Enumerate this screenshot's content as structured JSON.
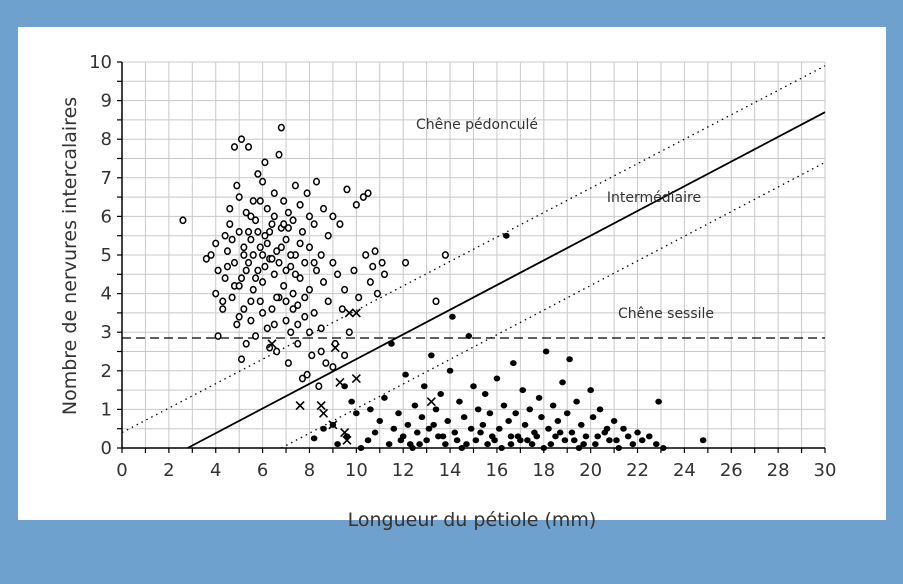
{
  "chart_data": {
    "type": "scatter",
    "xlabel": "Longueur du pétiole (mm)",
    "ylabel": "Nombre de nervures intercalaires",
    "xlim": [
      0,
      30
    ],
    "ylim": [
      0,
      10
    ],
    "xticks": [
      "0",
      "2",
      "4",
      "6",
      "8",
      "10",
      "12",
      "14",
      "16",
      "18",
      "20",
      "22",
      "24",
      "26",
      "28",
      "30"
    ],
    "yticks": [
      "0",
      "1",
      "2",
      "3",
      "4",
      "5",
      "6",
      "7",
      "8",
      "9",
      "10"
    ],
    "grid": true,
    "annotations": {
      "pedoncule": "Chêne pédonculé",
      "intermediaire": "Intermédiaire",
      "sessile": "Chêne sessile"
    },
    "lines": {
      "separator": {
        "x": [
          2.8,
          30
        ],
        "y": [
          0,
          8.7
        ]
      },
      "upper_bound": {
        "x": [
          0,
          30
        ],
        "y": [
          0.4,
          9.9
        ]
      },
      "lower_bound": {
        "x": [
          6.8,
          30
        ],
        "y": [
          0,
          7.4
        ]
      },
      "horizontal_threshold": 2.85
    },
    "series": [
      {
        "marker": "open-circle",
        "points": [
          [
            2.6,
            5.9
          ],
          [
            3.6,
            4.9
          ],
          [
            3.8,
            5.0
          ],
          [
            4.0,
            5.3
          ],
          [
            4.0,
            4.0
          ],
          [
            4.1,
            4.6
          ],
          [
            4.1,
            2.9
          ],
          [
            4.3,
            3.8
          ],
          [
            4.3,
            3.6
          ],
          [
            4.4,
            5.5
          ],
          [
            4.4,
            4.4
          ],
          [
            4.5,
            5.1
          ],
          [
            4.5,
            4.7
          ],
          [
            4.6,
            6.2
          ],
          [
            4.6,
            5.8
          ],
          [
            4.7,
            3.9
          ],
          [
            4.8,
            4.2
          ],
          [
            4.8,
            7.8
          ],
          [
            4.9,
            3.2
          ],
          [
            4.9,
            6.8
          ],
          [
            5.0,
            6.5
          ],
          [
            5.0,
            5.6
          ],
          [
            5.1,
            8.0
          ],
          [
            5.1,
            2.3
          ],
          [
            5.1,
            4.4
          ],
          [
            5.2,
            5.0
          ],
          [
            5.2,
            3.6
          ],
          [
            5.3,
            6.1
          ],
          [
            5.3,
            2.7
          ],
          [
            5.4,
            4.8
          ],
          [
            5.4,
            7.8
          ],
          [
            5.5,
            5.4
          ],
          [
            5.5,
            3.3
          ],
          [
            5.6,
            6.4
          ],
          [
            5.6,
            4.1
          ],
          [
            5.7,
            5.9
          ],
          [
            5.7,
            2.9
          ],
          [
            5.8,
            7.1
          ],
          [
            5.8,
            4.6
          ],
          [
            5.9,
            5.2
          ],
          [
            5.9,
            3.8
          ],
          [
            6.0,
            6.9
          ],
          [
            6.0,
            4.3
          ],
          [
            6.1,
            7.4
          ],
          [
            6.1,
            5.5
          ],
          [
            6.2,
            3.1
          ],
          [
            6.2,
            6.2
          ],
          [
            6.3,
            4.9
          ],
          [
            6.3,
            2.6
          ],
          [
            6.4,
            5.8
          ],
          [
            6.4,
            3.6
          ],
          [
            6.5,
            6.6
          ],
          [
            6.5,
            4.5
          ],
          [
            6.6,
            2.5
          ],
          [
            6.6,
            5.1
          ],
          [
            6.7,
            7.6
          ],
          [
            6.7,
            3.9
          ],
          [
            6.8,
            8.3
          ],
          [
            6.8,
            5.7
          ],
          [
            6.9,
            4.2
          ],
          [
            6.9,
            6.4
          ],
          [
            7.0,
            3.3
          ],
          [
            7.0,
            5.4
          ],
          [
            7.1,
            2.2
          ],
          [
            7.1,
            6.1
          ],
          [
            7.2,
            4.7
          ],
          [
            7.2,
            3.0
          ],
          [
            7.3,
            5.9
          ],
          [
            7.3,
            4.0
          ],
          [
            7.4,
            6.8
          ],
          [
            7.4,
            5.0
          ],
          [
            7.5,
            2.7
          ],
          [
            7.5,
            3.7
          ],
          [
            7.6,
            6.3
          ],
          [
            7.6,
            4.4
          ],
          [
            7.7,
            1.8
          ],
          [
            7.7,
            5.6
          ],
          [
            7.8,
            4.8
          ],
          [
            7.8,
            3.4
          ],
          [
            7.9,
            6.6
          ],
          [
            7.9,
            1.9
          ],
          [
            8.0,
            5.2
          ],
          [
            8.0,
            4.1
          ],
          [
            8.1,
            2.4
          ],
          [
            8.2,
            5.8
          ],
          [
            8.2,
            3.5
          ],
          [
            8.3,
            4.6
          ],
          [
            8.3,
            6.9
          ],
          [
            8.4,
            1.6
          ],
          [
            8.5,
            5.0
          ],
          [
            8.5,
            3.1
          ],
          [
            8.6,
            4.3
          ],
          [
            8.6,
            6.2
          ],
          [
            8.7,
            2.2
          ],
          [
            8.8,
            5.5
          ],
          [
            8.8,
            3.8
          ],
          [
            9.0,
            4.8
          ],
          [
            9.0,
            6.0
          ],
          [
            9.1,
            2.7
          ],
          [
            9.2,
            4.5
          ],
          [
            9.3,
            5.8
          ],
          [
            9.4,
            3.6
          ],
          [
            9.5,
            4.1
          ],
          [
            9.6,
            6.7
          ],
          [
            9.7,
            3.0
          ],
          [
            9.9,
            4.6
          ],
          [
            10.0,
            6.3
          ],
          [
            10.1,
            3.9
          ],
          [
            10.3,
            6.5
          ],
          [
            10.4,
            5.0
          ],
          [
            10.5,
            6.6
          ],
          [
            10.6,
            4.3
          ],
          [
            10.7,
            4.7
          ],
          [
            10.8,
            5.1
          ],
          [
            10.9,
            4.0
          ],
          [
            11.1,
            4.8
          ],
          [
            11.2,
            4.5
          ],
          [
            12.1,
            4.8
          ],
          [
            13.4,
            3.8
          ],
          [
            13.8,
            5.0
          ],
          [
            5.2,
            5.2
          ],
          [
            5.3,
            4.6
          ],
          [
            5.5,
            6.0
          ],
          [
            5.6,
            5.0
          ],
          [
            5.8,
            5.6
          ],
          [
            5.9,
            6.4
          ],
          [
            6.1,
            4.7
          ],
          [
            6.2,
            5.3
          ],
          [
            6.4,
            4.9
          ],
          [
            6.5,
            6.0
          ],
          [
            6.6,
            3.9
          ],
          [
            6.8,
            5.2
          ],
          [
            7.0,
            4.6
          ],
          [
            7.1,
            5.7
          ],
          [
            7.3,
            3.6
          ],
          [
            7.4,
            4.5
          ],
          [
            7.6,
            5.3
          ],
          [
            7.8,
            3.9
          ],
          [
            8.0,
            6.0
          ],
          [
            8.2,
            4.8
          ],
          [
            4.7,
            5.4
          ],
          [
            4.8,
            4.8
          ],
          [
            5.0,
            4.2
          ],
          [
            5.4,
            5.6
          ],
          [
            5.7,
            4.4
          ],
          [
            6.0,
            5.0
          ],
          [
            6.3,
            5.6
          ],
          [
            6.7,
            4.8
          ],
          [
            6.9,
            5.8
          ],
          [
            7.2,
            5.0
          ],
          [
            5.0,
            3.4
          ],
          [
            5.5,
            3.8
          ],
          [
            6.0,
            3.5
          ],
          [
            6.5,
            3.2
          ],
          [
            7.0,
            3.8
          ],
          [
            7.5,
            3.2
          ],
          [
            8.0,
            3.0
          ],
          [
            8.5,
            2.5
          ],
          [
            9.0,
            2.1
          ],
          [
            9.5,
            2.4
          ]
        ]
      },
      {
        "marker": "filled-circle",
        "points": [
          [
            8.2,
            0.25
          ],
          [
            8.6,
            0.5
          ],
          [
            9.0,
            0.6
          ],
          [
            9.2,
            0.1
          ],
          [
            9.5,
            1.6
          ],
          [
            9.6,
            0.3
          ],
          [
            9.8,
            1.2
          ],
          [
            10.0,
            0.9
          ],
          [
            10.2,
            0.0
          ],
          [
            10.5,
            0.2
          ],
          [
            10.6,
            1.0
          ],
          [
            10.8,
            0.4
          ],
          [
            11.0,
            0.7
          ],
          [
            11.2,
            1.3
          ],
          [
            11.4,
            0.1
          ],
          [
            11.5,
            2.7
          ],
          [
            11.6,
            0.5
          ],
          [
            11.8,
            0.9
          ],
          [
            12.0,
            0.3
          ],
          [
            12.1,
            1.9
          ],
          [
            12.2,
            0.6
          ],
          [
            12.4,
            0.0
          ],
          [
            12.5,
            1.1
          ],
          [
            12.6,
            0.4
          ],
          [
            12.8,
            0.8
          ],
          [
            12.9,
            1.6
          ],
          [
            13.0,
            0.2
          ],
          [
            13.2,
            2.4
          ],
          [
            13.3,
            0.6
          ],
          [
            13.4,
            1.0
          ],
          [
            13.5,
            0.3
          ],
          [
            13.6,
            1.4
          ],
          [
            13.8,
            0.1
          ],
          [
            13.9,
            0.7
          ],
          [
            14.0,
            2.0
          ],
          [
            14.1,
            3.4
          ],
          [
            14.2,
            0.4
          ],
          [
            14.4,
            1.2
          ],
          [
            14.5,
            0.0
          ],
          [
            14.6,
            0.8
          ],
          [
            14.8,
            2.9
          ],
          [
            14.9,
            0.5
          ],
          [
            15.0,
            1.6
          ],
          [
            15.1,
            0.2
          ],
          [
            15.2,
            1.0
          ],
          [
            15.4,
            0.6
          ],
          [
            15.5,
            1.4
          ],
          [
            15.6,
            0.1
          ],
          [
            15.7,
            0.9
          ],
          [
            15.8,
            0.3
          ],
          [
            16.0,
            1.8
          ],
          [
            16.1,
            0.5
          ],
          [
            16.2,
            0.0
          ],
          [
            16.3,
            1.1
          ],
          [
            16.4,
            5.5
          ],
          [
            16.5,
            0.7
          ],
          [
            16.6,
            0.3
          ],
          [
            16.7,
            2.2
          ],
          [
            16.8,
            0.9
          ],
          [
            17.0,
            0.2
          ],
          [
            17.1,
            1.5
          ],
          [
            17.2,
            0.6
          ],
          [
            17.4,
            1.0
          ],
          [
            17.5,
            0.1
          ],
          [
            17.6,
            0.4
          ],
          [
            17.8,
            1.3
          ],
          [
            17.9,
            0.8
          ],
          [
            18.0,
            0.0
          ],
          [
            18.1,
            2.5
          ],
          [
            18.2,
            0.5
          ],
          [
            18.4,
            1.1
          ],
          [
            18.5,
            0.3
          ],
          [
            18.6,
            0.7
          ],
          [
            18.8,
            1.7
          ],
          [
            18.9,
            0.2
          ],
          [
            19.0,
            0.9
          ],
          [
            19.1,
            2.3
          ],
          [
            19.2,
            0.4
          ],
          [
            19.4,
            1.2
          ],
          [
            19.5,
            0.0
          ],
          [
            19.6,
            0.6
          ],
          [
            19.8,
            0.3
          ],
          [
            20.0,
            1.5
          ],
          [
            20.1,
            0.8
          ],
          [
            20.2,
            0.1
          ],
          [
            20.4,
            1.0
          ],
          [
            20.6,
            0.4
          ],
          [
            20.8,
            0.2
          ],
          [
            21.0,
            0.7
          ],
          [
            21.2,
            0.0
          ],
          [
            21.4,
            0.5
          ],
          [
            21.6,
            0.3
          ],
          [
            21.8,
            0.1
          ],
          [
            22.0,
            0.4
          ],
          [
            22.2,
            0.2
          ],
          [
            22.5,
            0.3
          ],
          [
            22.8,
            0.1
          ],
          [
            22.9,
            1.2
          ],
          [
            23.1,
            0.0
          ],
          [
            24.8,
            0.2
          ],
          [
            12.7,
            0.1
          ],
          [
            13.1,
            0.5
          ],
          [
            14.3,
            0.2
          ],
          [
            15.3,
            0.4
          ],
          [
            16.9,
            0.3
          ],
          [
            17.3,
            0.2
          ],
          [
            18.3,
            0.1
          ],
          [
            19.3,
            0.2
          ],
          [
            20.3,
            0.3
          ],
          [
            21.1,
            0.2
          ],
          [
            11.9,
            0.2
          ],
          [
            12.3,
            0.1
          ],
          [
            13.7,
            0.3
          ],
          [
            14.7,
            0.1
          ],
          [
            15.9,
            0.2
          ],
          [
            16.6,
            0.1
          ],
          [
            17.7,
            0.3
          ],
          [
            18.7,
            0.4
          ],
          [
            19.7,
            0.1
          ],
          [
            20.7,
            0.5
          ]
        ]
      },
      {
        "marker": "cross",
        "points": [
          [
            6.4,
            2.7
          ],
          [
            9.7,
            3.5
          ],
          [
            10.0,
            3.5
          ],
          [
            9.1,
            2.6
          ],
          [
            7.6,
            1.1
          ],
          [
            8.5,
            1.1
          ],
          [
            9.3,
            1.7
          ],
          [
            9.5,
            0.4
          ],
          [
            9.0,
            0.6
          ],
          [
            8.6,
            0.9
          ],
          [
            9.6,
            0.2
          ],
          [
            13.2,
            1.2
          ],
          [
            10.0,
            1.8
          ]
        ]
      }
    ]
  }
}
